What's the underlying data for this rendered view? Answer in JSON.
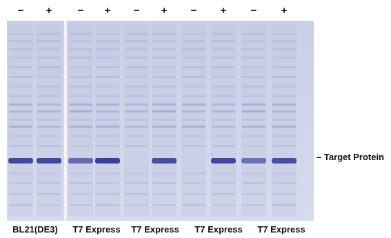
{
  "figure": {
    "lane_signs": [
      "−",
      "+",
      "−",
      "+",
      "−",
      "+",
      "−",
      "+",
      "−",
      "+"
    ],
    "strain_labels": [
      "BL21(DE3)",
      "T7 Express",
      "T7 Express",
      "T7 Express",
      "T7 Express"
    ],
    "target_label": "– Target Protein",
    "colors": {
      "gel_background": "#cfd3e6",
      "band": "#3a3f95",
      "text": "#111111"
    },
    "target_band_intensity": [
      0.95,
      0.95,
      0.7,
      1.0,
      0.0,
      0.9,
      0.0,
      0.95,
      0.65,
      0.9
    ]
  }
}
